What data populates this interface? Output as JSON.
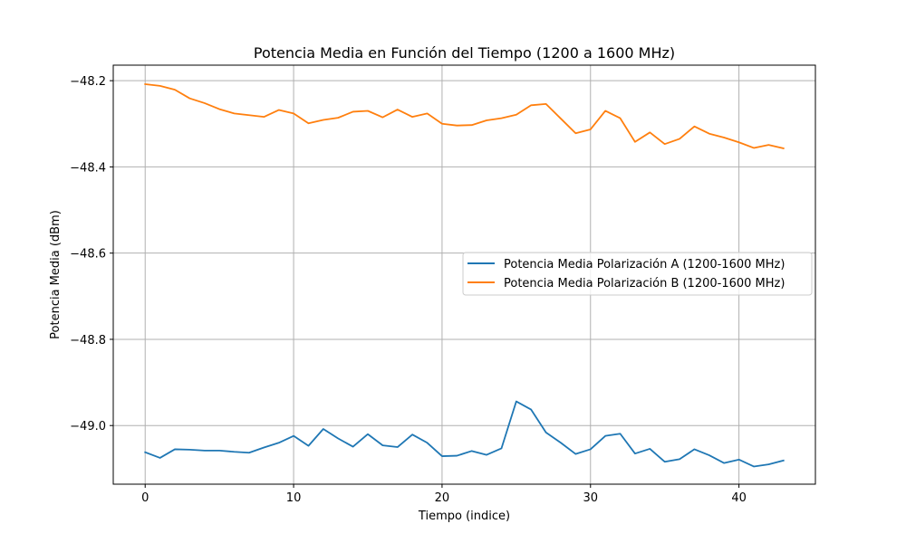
{
  "chart_data": {
    "type": "line",
    "title": "Potencia Media en Función del Tiempo (1200 a 1600 MHz)",
    "xlabel": "Tiempo (indice)",
    "ylabel": "Potencia Media (dBm)",
    "xlim": [
      -2.15,
      45.15
    ],
    "ylim": [
      -49.136,
      -48.164
    ],
    "xticks": [
      0,
      10,
      20,
      30,
      40
    ],
    "yticks": [
      -49.0,
      -48.8,
      -48.6,
      -48.4,
      -48.2
    ],
    "xtick_labels": [
      "0",
      "10",
      "20",
      "30",
      "40"
    ],
    "ytick_labels": [
      "−49.0",
      "−48.8",
      "−48.6",
      "−48.4",
      "−48.2"
    ],
    "grid": true,
    "legend_position": "center-right",
    "x": [
      0,
      1,
      2,
      3,
      4,
      5,
      6,
      7,
      8,
      9,
      10,
      11,
      12,
      13,
      14,
      15,
      16,
      17,
      18,
      19,
      20,
      21,
      22,
      23,
      24,
      25,
      26,
      27,
      28,
      29,
      30,
      31,
      32,
      33,
      34,
      35,
      36,
      37,
      38,
      39,
      40,
      41,
      42,
      43
    ],
    "series": [
      {
        "name": "Potencia Media Polarización A (1200-1600 MHz)",
        "color": "#1f77b4",
        "values": [
          -49.062,
          -49.075,
          -49.055,
          -49.056,
          -49.058,
          -49.058,
          -49.061,
          -49.063,
          -49.051,
          -49.04,
          -49.024,
          -49.047,
          -49.008,
          -49.03,
          -49.049,
          -49.02,
          -49.046,
          -49.05,
          -49.021,
          -49.04,
          -49.071,
          -49.07,
          -49.059,
          -49.068,
          -49.053,
          -48.944,
          -48.963,
          -49.016,
          -49.04,
          -49.066,
          -49.055,
          -49.024,
          -49.019,
          -49.065,
          -49.054,
          -49.084,
          -49.078,
          -49.055,
          -49.069,
          -49.087,
          -49.079,
          -49.095,
          -49.09,
          -49.081
        ]
      },
      {
        "name": "Potencia Media Polarización B (1200-1600 MHz)",
        "color": "#ff7f0e",
        "values": [
          -48.208,
          -48.212,
          -48.221,
          -48.241,
          -48.252,
          -48.266,
          -48.276,
          -48.28,
          -48.284,
          -48.268,
          -48.276,
          -48.299,
          -48.291,
          -48.286,
          -48.272,
          -48.27,
          -48.285,
          -48.267,
          -48.284,
          -48.276,
          -48.3,
          -48.304,
          -48.303,
          -48.292,
          -48.287,
          -48.279,
          -48.257,
          -48.254,
          -48.288,
          -48.322,
          -48.313,
          -48.27,
          -48.287,
          -48.342,
          -48.32,
          -48.347,
          -48.335,
          -48.306,
          -48.323,
          -48.332,
          -48.343,
          -48.356,
          -48.349,
          -48.357
        ]
      }
    ]
  }
}
